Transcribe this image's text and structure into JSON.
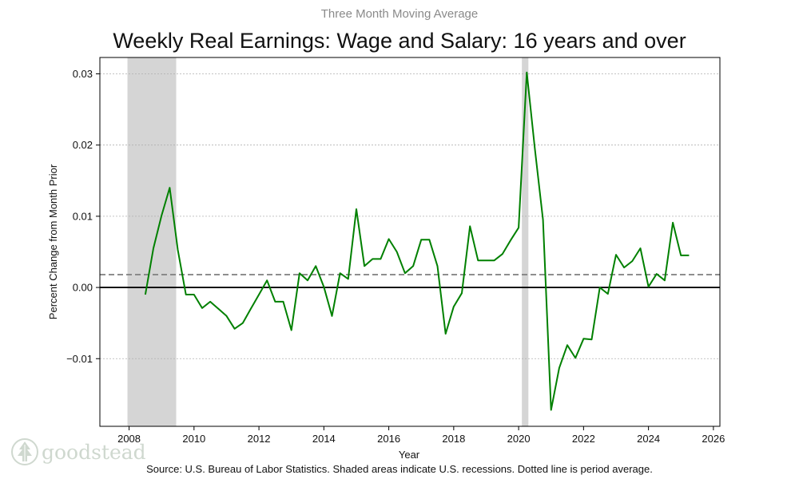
{
  "colors": {
    "line": "#008000",
    "recession": "#d5d5d5",
    "average_line": "#7f7f7f",
    "zero_line": "#000000",
    "grid": "#b0b0b0",
    "logo": "#cfd8cf"
  },
  "logo": {
    "text": "goodstead",
    "icon": "tree-icon"
  },
  "source_note": "Source: U.S. Bureau of Labor Statistics. Shaded areas indicate U.S. recessions. Dotted line is period average.",
  "chart_data": {
    "type": "line",
    "subtitle": "Three Month Moving Average",
    "title": "Weekly Real Earnings: Wage and Salary: 16 years and over",
    "xlabel": "Year",
    "ylabel": "Percent Change from Month Prior",
    "xlim": [
      2007.1,
      2026.2
    ],
    "ylim": [
      -0.0195,
      0.0323
    ],
    "x_ticks": [
      2008,
      2010,
      2012,
      2014,
      2016,
      2018,
      2020,
      2022,
      2024,
      2026
    ],
    "y_ticks": [
      {
        "value": -0.01,
        "label": "−0.01"
      },
      {
        "value": 0.0,
        "label": "0.00"
      },
      {
        "value": 0.01,
        "label": "0.01"
      },
      {
        "value": 0.02,
        "label": "0.02"
      },
      {
        "value": 0.03,
        "label": "0.03"
      }
    ],
    "grid": "horizontal dotted",
    "average": 0.0018,
    "zero_line": 0.0,
    "recessions": [
      [
        2007.95,
        2009.45
      ],
      [
        2020.1,
        2020.3
      ]
    ],
    "series": [
      {
        "name": "Weekly real earnings, 3-month moving average",
        "points": [
          [
            2008.5,
            -0.001
          ],
          [
            2008.75,
            0.0055
          ],
          [
            2009.0,
            0.0101
          ],
          [
            2009.25,
            0.014
          ],
          [
            2009.5,
            0.0053
          ],
          [
            2009.75,
            -0.001
          ],
          [
            2010.0,
            -0.001
          ],
          [
            2010.25,
            -0.0029
          ],
          [
            2010.5,
            -0.002
          ],
          [
            2010.75,
            -0.003
          ],
          [
            2011.0,
            -0.004
          ],
          [
            2011.25,
            -0.0058
          ],
          [
            2011.5,
            -0.005
          ],
          [
            2011.75,
            -0.003
          ],
          [
            2012.0,
            -0.001
          ],
          [
            2012.25,
            0.001
          ],
          [
            2012.5,
            -0.002
          ],
          [
            2012.75,
            -0.002
          ],
          [
            2013.0,
            -0.006
          ],
          [
            2013.25,
            0.002
          ],
          [
            2013.5,
            0.001
          ],
          [
            2013.75,
            0.003
          ],
          [
            2014.0,
            0.0001
          ],
          [
            2014.25,
            -0.004
          ],
          [
            2014.5,
            0.002
          ],
          [
            2014.75,
            0.0012
          ],
          [
            2015.0,
            0.011
          ],
          [
            2015.25,
            0.003
          ],
          [
            2015.5,
            0.004
          ],
          [
            2015.75,
            0.004
          ],
          [
            2016.0,
            0.0068
          ],
          [
            2016.25,
            0.005
          ],
          [
            2016.5,
            0.002
          ],
          [
            2016.75,
            0.003
          ],
          [
            2017.0,
            0.0067
          ],
          [
            2017.25,
            0.0067
          ],
          [
            2017.5,
            0.003
          ],
          [
            2017.75,
            -0.0065
          ],
          [
            2018.0,
            -0.0027
          ],
          [
            2018.25,
            -0.0008
          ],
          [
            2018.5,
            0.0086
          ],
          [
            2018.75,
            0.0038
          ],
          [
            2019.0,
            0.0038
          ],
          [
            2019.25,
            0.0038
          ],
          [
            2019.5,
            0.0047
          ],
          [
            2019.75,
            0.0066
          ],
          [
            2020.0,
            0.0084
          ],
          [
            2020.25,
            0.0302
          ],
          [
            2020.5,
            0.0195
          ],
          [
            2020.75,
            0.0095
          ],
          [
            2021.0,
            -0.0172
          ],
          [
            2021.25,
            -0.0113
          ],
          [
            2021.5,
            -0.0081
          ],
          [
            2021.75,
            -0.0099
          ],
          [
            2022.0,
            -0.0072
          ],
          [
            2022.25,
            -0.0073
          ],
          [
            2022.5,
            0.0
          ],
          [
            2022.75,
            -0.0009
          ],
          [
            2023.0,
            0.0046
          ],
          [
            2023.25,
            0.0028
          ],
          [
            2023.5,
            0.0037
          ],
          [
            2023.75,
            0.0055
          ],
          [
            2024.0,
            0.0001
          ],
          [
            2024.25,
            0.0019
          ],
          [
            2024.5,
            0.001
          ],
          [
            2024.75,
            0.0091
          ],
          [
            2025.0,
            0.0045
          ],
          [
            2025.25,
            0.0045
          ]
        ]
      }
    ]
  }
}
